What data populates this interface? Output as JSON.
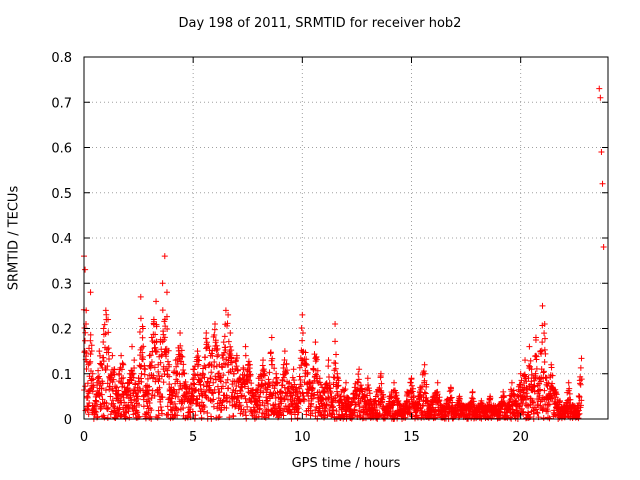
{
  "chart_data": {
    "type": "scatter",
    "title": "Day 198 of 2011, SRMTID for receiver hob2",
    "xlabel": "GPS time / hours",
    "ylabel": "SRMTID / TECUs",
    "xlim": [
      0,
      24
    ],
    "ylim": [
      0,
      0.8
    ],
    "xticks": [
      0,
      5,
      10,
      15,
      20
    ],
    "yticks": [
      0,
      0.1,
      0.2,
      0.3,
      0.4,
      0.5,
      0.6,
      0.7,
      0.8
    ],
    "grid": true,
    "marker": "+",
    "color": "#ff0000",
    "series": [
      {
        "name": "SRMTID",
        "x": [
          0.0,
          0.05,
          0.1,
          0.15,
          0.2,
          0.3,
          0.4,
          0.5,
          0.6,
          0.7,
          0.8,
          0.9,
          1.0,
          1.1,
          1.2,
          1.3,
          1.4,
          1.5,
          1.6,
          1.7,
          1.8,
          1.9,
          2.0,
          2.1,
          2.2,
          2.3,
          2.4,
          2.5,
          2.6,
          2.7,
          2.8,
          2.9,
          3.0,
          3.1,
          3.2,
          3.3,
          3.4,
          3.5,
          3.6,
          3.7,
          3.8,
          3.9,
          4.0,
          4.2,
          4.4,
          4.6,
          4.8,
          5.0,
          5.2,
          5.4,
          5.6,
          5.8,
          6.0,
          6.2,
          6.4,
          6.5,
          6.6,
          6.7,
          6.8,
          7.0,
          7.2,
          7.4,
          7.6,
          7.8,
          8.0,
          8.2,
          8.4,
          8.6,
          8.8,
          9.0,
          9.2,
          9.4,
          9.6,
          9.8,
          10.0,
          10.2,
          10.4,
          10.6,
          10.8,
          11.0,
          11.2,
          11.4,
          11.5,
          11.6,
          11.8,
          12.0,
          12.2,
          12.4,
          12.6,
          12.8,
          13.0,
          13.2,
          13.4,
          13.6,
          13.8,
          14.0,
          14.2,
          14.4,
          14.6,
          14.8,
          15.0,
          15.2,
          15.4,
          15.6,
          15.8,
          16.0,
          16.2,
          16.4,
          16.6,
          16.8,
          17.0,
          17.2,
          17.4,
          17.6,
          17.8,
          18.0,
          18.2,
          18.4,
          18.6,
          18.8,
          19.0,
          19.2,
          19.4,
          19.6,
          19.8,
          20.0,
          20.1,
          20.2,
          20.3,
          20.4,
          20.5,
          20.6,
          20.7,
          20.8,
          20.9,
          21.0,
          21.1,
          21.2,
          21.4,
          21.6,
          21.8,
          22.0,
          22.2,
          22.4,
          22.6,
          23.6,
          23.65,
          23.7,
          23.75,
          23.8
        ],
        "y": [
          0.36,
          0.33,
          0.24,
          0.05,
          0.12,
          0.28,
          0.1,
          0.03,
          0.08,
          0.15,
          0.12,
          0.2,
          0.24,
          0.22,
          0.09,
          0.14,
          0.11,
          0.07,
          0.1,
          0.14,
          0.12,
          0.06,
          0.08,
          0.1,
          0.16,
          0.13,
          0.05,
          0.09,
          0.27,
          0.2,
          0.11,
          0.07,
          0.14,
          0.18,
          0.22,
          0.26,
          0.12,
          0.17,
          0.3,
          0.36,
          0.28,
          0.12,
          0.07,
          0.13,
          0.19,
          0.1,
          0.06,
          0.11,
          0.15,
          0.09,
          0.19,
          0.14,
          0.21,
          0.12,
          0.17,
          0.24,
          0.23,
          0.19,
          0.11,
          0.14,
          0.08,
          0.16,
          0.12,
          0.05,
          0.09,
          0.13,
          0.07,
          0.18,
          0.1,
          0.06,
          0.15,
          0.08,
          0.11,
          0.05,
          0.23,
          0.12,
          0.07,
          0.17,
          0.09,
          0.06,
          0.13,
          0.04,
          0.21,
          0.1,
          0.06,
          0.08,
          0.03,
          0.07,
          0.11,
          0.05,
          0.09,
          0.03,
          0.06,
          0.1,
          0.02,
          0.05,
          0.08,
          0.04,
          0.01,
          0.06,
          0.09,
          0.03,
          0.07,
          0.12,
          0.02,
          0.05,
          0.08,
          0.01,
          0.04,
          0.07,
          0.02,
          0.05,
          0.01,
          0.03,
          0.06,
          0.01,
          0.04,
          0.02,
          0.05,
          0.01,
          0.03,
          0.06,
          0.02,
          0.08,
          0.04,
          0.1,
          0.07,
          0.13,
          0.05,
          0.16,
          0.11,
          0.09,
          0.18,
          0.06,
          0.15,
          0.25,
          0.21,
          0.08,
          0.12,
          0.06,
          0.04,
          0.02,
          0.08,
          0.03,
          0.01,
          0.73,
          0.71,
          0.59,
          0.52,
          0.38
        ],
        "dense_band": {
          "x_range": [
            0,
            22.8
          ],
          "y_floor": 0.0
        }
      }
    ]
  }
}
